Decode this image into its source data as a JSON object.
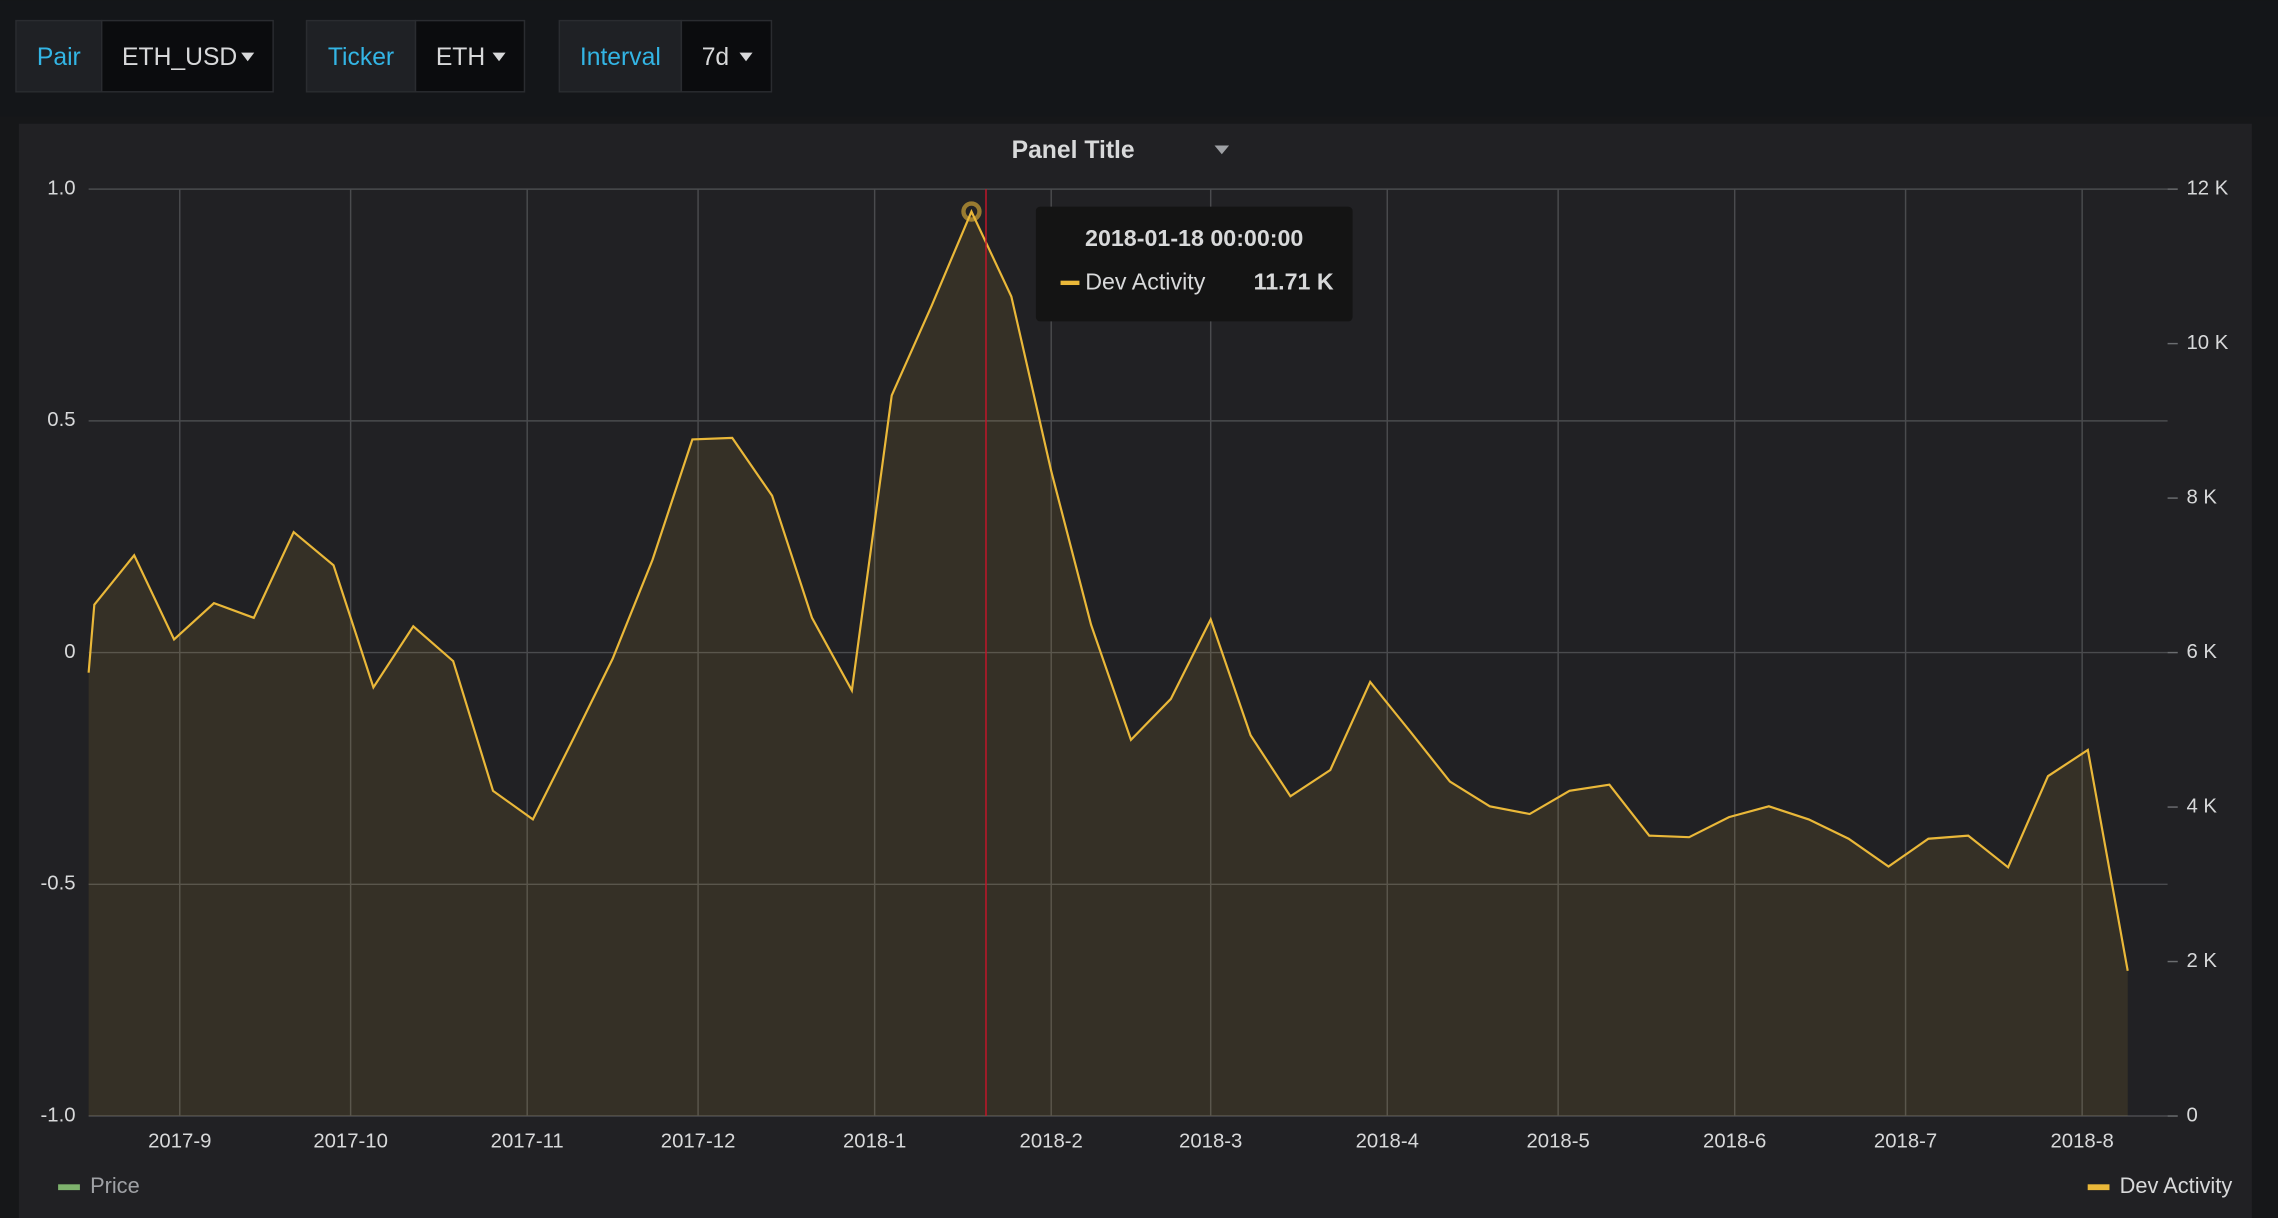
{
  "variables": [
    {
      "label": "Pair",
      "value": "ETH_USD"
    },
    {
      "label": "Ticker",
      "value": "ETH"
    },
    {
      "label": "Interval",
      "value": "7d"
    }
  ],
  "chart_data": {
    "type": "line",
    "title": "Panel Title",
    "x": [
      "2017-08-16",
      "2017-08-17",
      "2017-08-24",
      "2017-08-31",
      "2017-09-07",
      "2017-09-14",
      "2017-09-21",
      "2017-09-28",
      "2017-10-05",
      "2017-10-12",
      "2017-10-19",
      "2017-10-26",
      "2017-11-02",
      "2017-11-09",
      "2017-11-16",
      "2017-11-23",
      "2017-11-30",
      "2017-12-07",
      "2017-12-14",
      "2017-12-21",
      "2017-12-28",
      "2018-01-04",
      "2018-01-11",
      "2018-01-18",
      "2018-01-25",
      "2018-02-01",
      "2018-02-08",
      "2018-02-15",
      "2018-02-22",
      "2018-03-01",
      "2018-03-08",
      "2018-03-15",
      "2018-03-22",
      "2018-03-29",
      "2018-04-05",
      "2018-04-12",
      "2018-04-19",
      "2018-04-26",
      "2018-05-03",
      "2018-05-10",
      "2018-05-17",
      "2018-05-24",
      "2018-05-31",
      "2018-06-07",
      "2018-06-14",
      "2018-06-21",
      "2018-06-28",
      "2018-07-05",
      "2018-07-12",
      "2018-07-19",
      "2018-07-26",
      "2018-08-02",
      "2018-08-09"
    ],
    "series": [
      {
        "name": "Price",
        "color": "#7eb26d",
        "values": [
          null,
          null,
          null,
          null,
          null,
          null,
          null,
          null,
          null,
          null,
          null,
          null,
          null,
          null,
          null,
          null,
          null,
          null,
          null,
          null,
          null,
          null,
          null,
          null,
          null,
          null,
          null,
          null,
          null,
          null,
          null,
          null,
          null,
          null,
          null,
          null,
          null,
          null,
          null,
          null,
          null,
          null,
          null,
          null,
          null,
          null,
          null,
          null,
          null,
          null,
          null,
          null,
          null
        ]
      },
      {
        "name": "Dev Activity",
        "color": "#eab839",
        "axis": "y2",
        "values": [
          5740,
          6620,
          7260,
          6170,
          6640,
          6450,
          7560,
          7130,
          5550,
          6340,
          5890,
          4210,
          3840,
          4870,
          5920,
          7200,
          8760,
          8780,
          8030,
          6450,
          5510,
          9330,
          10490,
          11710,
          10610,
          8350,
          6360,
          4870,
          5400,
          6430,
          4930,
          4140,
          4480,
          5620,
          4980,
          4330,
          4010,
          3910,
          4210,
          4290,
          3630,
          3610,
          3870,
          4010,
          3840,
          3590,
          3230,
          3590,
          3630,
          3220,
          4400,
          4740,
          1880
        ]
      }
    ],
    "xlim": [
      "2017-08-16",
      "2018-08-16"
    ],
    "xticks": [
      {
        "value": "2017-09-01",
        "label": "2017-9"
      },
      {
        "value": "2017-10-01",
        "label": "2017-10"
      },
      {
        "value": "2017-11-01",
        "label": "2017-11"
      },
      {
        "value": "2017-12-01",
        "label": "2017-12"
      },
      {
        "value": "2018-01-01",
        "label": "2018-1"
      },
      {
        "value": "2018-02-01",
        "label": "2018-2"
      },
      {
        "value": "2018-03-01",
        "label": "2018-3"
      },
      {
        "value": "2018-04-01",
        "label": "2018-4"
      },
      {
        "value": "2018-05-01",
        "label": "2018-5"
      },
      {
        "value": "2018-06-01",
        "label": "2018-6"
      },
      {
        "value": "2018-07-01",
        "label": "2018-7"
      },
      {
        "value": "2018-08-01",
        "label": "2018-8"
      }
    ],
    "ylim": [
      -1,
      1
    ],
    "yticks": [
      {
        "value": 1,
        "label": "1.0"
      },
      0.5,
      0,
      -0.5,
      {
        "value": -1,
        "label": "-1.0"
      }
    ],
    "y2lim": [
      0,
      12000
    ],
    "y2ticks": [
      0,
      {
        "value": 2000,
        "label": "2 K"
      },
      {
        "value": 4000,
        "label": "4 K"
      },
      {
        "value": 6000,
        "label": "6 K"
      },
      {
        "value": 8000,
        "label": "8 K"
      },
      {
        "value": 10000,
        "label": "10 K"
      },
      {
        "value": 12000,
        "label": "12 K"
      }
    ],
    "grid": true,
    "tooltip": {
      "x": "2018-01-18",
      "title": "2018-01-18 00:00:00",
      "series": "Dev Activity",
      "value": 11710,
      "value_label": "11.71 K"
    }
  }
}
